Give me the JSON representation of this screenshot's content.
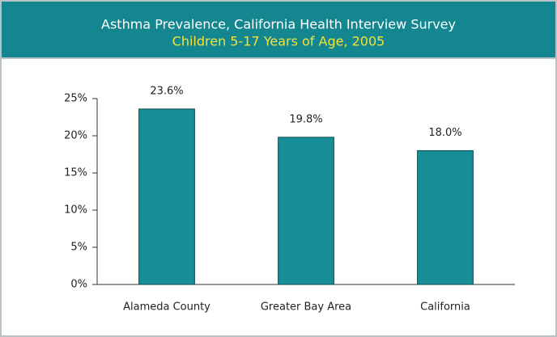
{
  "chart_data": {
    "type": "bar",
    "title": "Asthma Prevalence, California Health Interview Survey",
    "subtitle": "Children 5-17 Years of Age, 2005",
    "categories": [
      "Alameda County",
      "Greater Bay Area",
      "California"
    ],
    "values": [
      23.6,
      19.8,
      18.0
    ],
    "value_labels": [
      "23.6%",
      "19.8%",
      "18.0%"
    ],
    "color": "#178e97",
    "ylim": [
      0,
      25
    ],
    "yticks": [
      {
        "value": 0,
        "label": "0%"
      },
      {
        "value": 5,
        "label": "5%"
      },
      {
        "value": 10,
        "label": "10%"
      },
      {
        "value": 15,
        "label": "15%"
      },
      {
        "value": 20,
        "label": "20%"
      },
      {
        "value": 25,
        "label": "25%"
      }
    ],
    "grid": false
  }
}
